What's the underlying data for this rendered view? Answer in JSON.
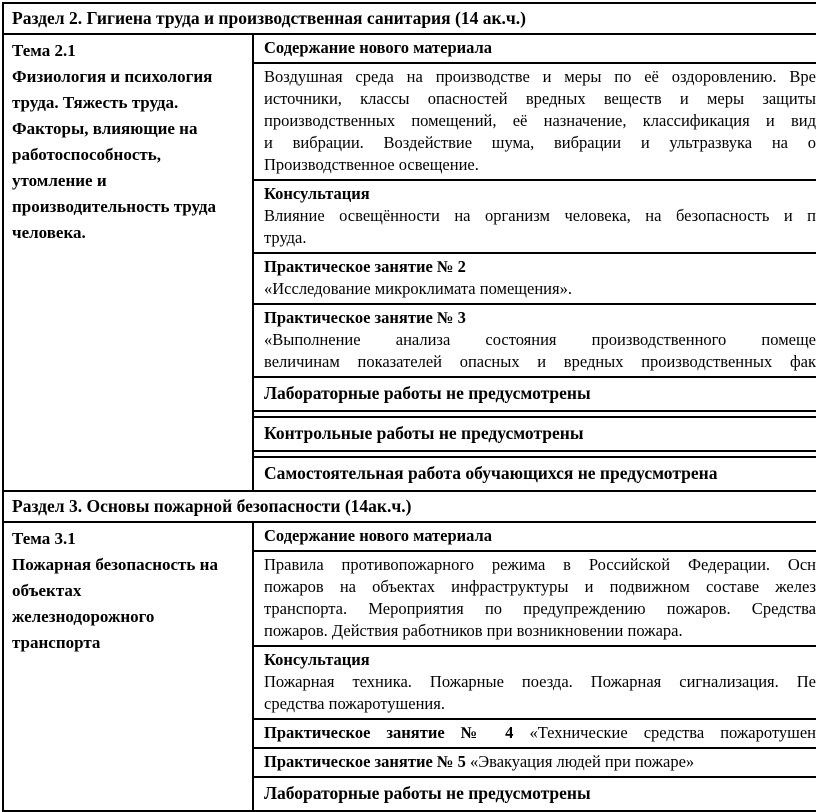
{
  "s2": {
    "header": "Раздел 2. Гигиена труда и производственная санитария (14 ак.ч.)",
    "topic_title": "Тема 2.1",
    "topic_lines": [
      "Физиология и психология",
      "труда. Тяжесть труда.",
      "Факторы, влияющие на",
      "работоспособность,",
      "утомление и",
      "производительность труда",
      "человека."
    ],
    "content_label": "Содержание нового материала",
    "body_lines": [
      "Воздушная среда на производстве и меры по её оздоровлению. Вре",
      "источники, классы опасностей вредных веществ и меры защиты",
      "производственных помещений, её назначение, классификация и вид",
      "и вибрации. Воздействие шума, вибрации и ультразвука на о"
    ],
    "body_last": "Производственное освещение.",
    "consult_title": "Консультация",
    "consult_lines": [
      "Влияние освещённости на организм человека, на безопасность и п"
    ],
    "consult_last": "труда.",
    "p2_title": "Практическое занятие № 2",
    "p2_text": "«Исследование микроклимата помещения».",
    "p3_title": "Практическое занятие № 3",
    "p3_lines": [
      "«Выполнение анализа состояния производственного помеще",
      "величинам показателей опасных и вредных производственных фак"
    ],
    "lab": "Лабораторные работы не предусмотрены",
    "control": "Контрольные работы не предусмотрены",
    "self_work": "Самостоятельная работа обучающихся не предусмотрена"
  },
  "s3": {
    "header": "Раздел 3. Основы пожарной безопасности (14ак.ч.)",
    "topic_title": "Тема 3.1",
    "topic_lines": [
      "Пожарная безопасность на",
      "объектах",
      "железнодорожного",
      "транспорта"
    ],
    "content_label": "Содержание нового материала",
    "body_lines": [
      "Правила противопожарного режима в Российской Федерации. Осн",
      "пожаров на объектах инфраструктуры и подвижном составе желез",
      "транспорта. Мероприятия по предупреждению пожаров. Средства"
    ],
    "body_last": "пожаров. Действия работников при возникновении пожара.",
    "consult_title": "Консультация",
    "consult_lines": [
      "Пожарная техника. Пожарные поезда. Пожарная сигнализация. Пе"
    ],
    "consult_last": "средства пожаротушения.",
    "p4_title": "Практическое занятие № 4",
    "p4_text": "«Технические средства пожаротушен",
    "p5_title": "Практическое занятие № 5",
    "p5_text": "«Эвакуация людей при пожаре»",
    "lab": "Лабораторные работы не предусмотрены"
  }
}
